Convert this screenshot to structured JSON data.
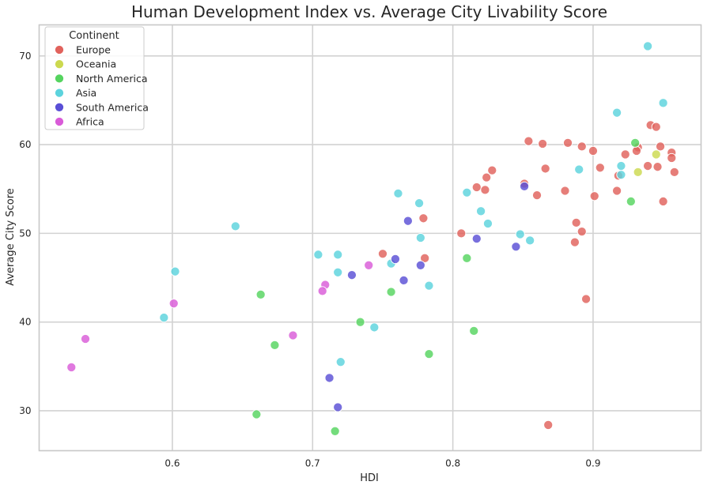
{
  "chart_data": {
    "type": "scatter",
    "title": "Human Development Index vs. Average City Livability Score",
    "xlabel": "HDI",
    "ylabel": "Average City Score",
    "xlim": [
      0.505,
      0.977
    ],
    "ylim": [
      25.5,
      73.5
    ],
    "xticks": [
      "0.6",
      "0.7",
      "0.8",
      "0.9"
    ],
    "xtick_values": [
      0.6,
      0.7,
      0.8,
      0.9
    ],
    "yticks": [
      "30",
      "40",
      "50",
      "60",
      "70"
    ],
    "ytick_values": [
      30,
      40,
      50,
      60,
      70
    ],
    "grid": true,
    "legend": {
      "title": "Continent",
      "position": "top-left"
    },
    "series": [
      {
        "name": "Europe",
        "color": "#e1625c",
        "points": [
          [
            0.854,
            60.4
          ],
          [
            0.864,
            60.1
          ],
          [
            0.882,
            60.2
          ],
          [
            0.892,
            59.8
          ],
          [
            0.9,
            59.3
          ],
          [
            0.932,
            59.7
          ],
          [
            0.941,
            62.2
          ],
          [
            0.945,
            62.0
          ],
          [
            0.948,
            59.8
          ],
          [
            0.956,
            59.1
          ],
          [
            0.923,
            58.9
          ],
          [
            0.931,
            59.3
          ],
          [
            0.828,
            57.1
          ],
          [
            0.866,
            57.3
          ],
          [
            0.905,
            57.4
          ],
          [
            0.939,
            57.6
          ],
          [
            0.946,
            57.5
          ],
          [
            0.958,
            56.9
          ],
          [
            0.956,
            58.5
          ],
          [
            0.824,
            56.3
          ],
          [
            0.851,
            55.6
          ],
          [
            0.817,
            55.2
          ],
          [
            0.823,
            54.9
          ],
          [
            0.86,
            54.3
          ],
          [
            0.88,
            54.8
          ],
          [
            0.901,
            54.2
          ],
          [
            0.917,
            54.8
          ],
          [
            0.95,
            53.6
          ],
          [
            0.918,
            56.5
          ],
          [
            0.779,
            51.7
          ],
          [
            0.888,
            51.2
          ],
          [
            0.892,
            50.2
          ],
          [
            0.806,
            50.0
          ],
          [
            0.887,
            49.0
          ],
          [
            0.75,
            47.7
          ],
          [
            0.78,
            47.2
          ],
          [
            0.895,
            42.6
          ],
          [
            0.868,
            28.4
          ]
        ]
      },
      {
        "name": "Oceania",
        "color": "#ccd94f",
        "points": [
          [
            0.945,
            58.9
          ],
          [
            0.932,
            56.9
          ]
        ]
      },
      {
        "name": "North America",
        "color": "#55d45f",
        "points": [
          [
            0.93,
            60.2
          ],
          [
            0.927,
            53.6
          ],
          [
            0.81,
            47.2
          ],
          [
            0.663,
            43.1
          ],
          [
            0.756,
            43.4
          ],
          [
            0.734,
            40.0
          ],
          [
            0.815,
            39.0
          ],
          [
            0.673,
            37.4
          ],
          [
            0.783,
            36.4
          ],
          [
            0.66,
            29.6
          ],
          [
            0.716,
            27.7
          ]
        ]
      },
      {
        "name": "Asia",
        "color": "#5cd3dd",
        "points": [
          [
            0.939,
            71.1
          ],
          [
            0.95,
            64.7
          ],
          [
            0.917,
            63.6
          ],
          [
            0.92,
            57.6
          ],
          [
            0.89,
            57.2
          ],
          [
            0.92,
            56.6
          ],
          [
            0.761,
            54.5
          ],
          [
            0.81,
            54.6
          ],
          [
            0.776,
            53.4
          ],
          [
            0.82,
            52.5
          ],
          [
            0.825,
            51.1
          ],
          [
            0.645,
            50.8
          ],
          [
            0.777,
            49.5
          ],
          [
            0.848,
            49.9
          ],
          [
            0.855,
            49.2
          ],
          [
            0.704,
            47.6
          ],
          [
            0.718,
            47.6
          ],
          [
            0.756,
            46.6
          ],
          [
            0.602,
            45.7
          ],
          [
            0.718,
            45.6
          ],
          [
            0.783,
            44.1
          ],
          [
            0.594,
            40.5
          ],
          [
            0.744,
            39.4
          ],
          [
            0.72,
            35.5
          ]
        ]
      },
      {
        "name": "South America",
        "color": "#5a4fd6",
        "points": [
          [
            0.851,
            55.3
          ],
          [
            0.768,
            51.4
          ],
          [
            0.817,
            49.4
          ],
          [
            0.845,
            48.5
          ],
          [
            0.759,
            47.1
          ],
          [
            0.777,
            46.4
          ],
          [
            0.728,
            45.3
          ],
          [
            0.765,
            44.7
          ],
          [
            0.712,
            33.7
          ],
          [
            0.718,
            30.4
          ]
        ]
      },
      {
        "name": "Africa",
        "color": "#d95bd8",
        "points": [
          [
            0.74,
            46.4
          ],
          [
            0.709,
            44.2
          ],
          [
            0.707,
            43.5
          ],
          [
            0.601,
            42.1
          ],
          [
            0.686,
            38.5
          ],
          [
            0.538,
            38.1
          ],
          [
            0.528,
            34.9
          ]
        ]
      }
    ]
  }
}
